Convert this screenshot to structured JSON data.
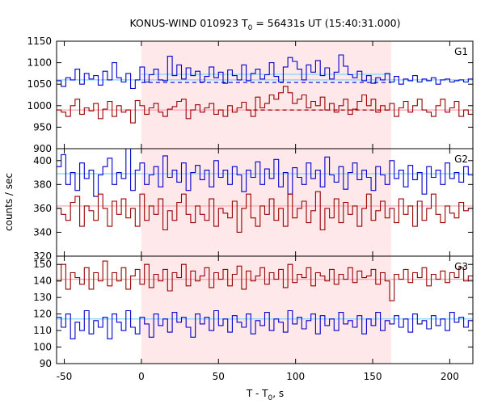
{
  "chart_data": {
    "type": "line",
    "title": "KONUS-WIND 010923 T",
    "title_sub": "0",
    "title_rest": " = 56431s UT (15:40:31.000)",
    "ylabel": "counts / sec",
    "xlabel_main": "T - T",
    "xlabel_sub": "0",
    "xlabel_rest": ", s",
    "xlim": [
      -55,
      215
    ],
    "x_ticks": [
      -50,
      0,
      50,
      100,
      150,
      200
    ],
    "shade": {
      "x_start": 0,
      "x_end": 162,
      "color": "#ffe8ea"
    },
    "bin_start": -55,
    "bin_width": 3,
    "colors": {
      "blue": "#0000cc",
      "red": "#990000",
      "blue_bg": "#7fd4ff",
      "red_bg": "#ff9fb0"
    },
    "panels": [
      {
        "name": "G1",
        "ylim": [
          900,
          1150
        ],
        "y_ticks": [
          900,
          950,
          1000,
          1050,
          1100,
          1150
        ],
        "background": [
          {
            "series": "blue",
            "level": 1060,
            "style": "solid",
            "x_start": -55,
            "x_end": 215
          },
          {
            "series": "red",
            "level": 990,
            "style": "solid",
            "x_start": -55,
            "x_end": 215
          },
          {
            "series": "blue",
            "level": 1073,
            "style": "solid",
            "x_start": 0,
            "x_end": 162
          }
        ],
        "fits": [
          {
            "series": "blue",
            "level": 1054,
            "style": "dashed",
            "x_start": 0,
            "x_end": 162
          },
          {
            "series": "red",
            "level": 990,
            "style": "dashed",
            "x_start": 68,
            "x_end": 162
          }
        ],
        "series": [
          {
            "color": "blue",
            "values": [
              1058,
              1045,
              1065,
              1060,
              1085,
              1050,
              1075,
              1062,
              1070,
              1048,
              1080,
              1060,
              1100,
              1065,
              1055,
              1075,
              1040,
              1060,
              1090,
              1055,
              1072,
              1085,
              1060,
              1058,
              1115,
              1070,
              1095,
              1062,
              1088,
              1070,
              1080,
              1055,
              1068,
              1090,
              1065,
              1078,
              1052,
              1083,
              1070,
              1060,
              1095,
              1058,
              1075,
              1085,
              1062,
              1072,
              1100,
              1068,
              1055,
              1090,
              1112,
              1103,
              1085,
              1060,
              1095,
              1078,
              1105,
              1070,
              1088,
              1062,
              1078,
              1118,
              1092,
              1072,
              1065,
              1080,
              1058,
              1070,
              1052,
              1065,
              1060,
              1075,
              1055,
              1068,
              1050,
              1062,
              1058,
              1070,
              1055,
              1062,
              1058,
              1065,
              1050,
              1060,
              1062,
              1055,
              1058,
              1060,
              1055,
              1062
            ]
          },
          {
            "color": "red",
            "values": [
              990,
              985,
              975,
              1000,
              1015,
              980,
              995,
              988,
              1005,
              970,
              992,
              1010,
              975,
              1000,
              985,
              990,
              960,
              1012,
              1000,
              980,
              995,
              1005,
              985,
              975,
              992,
              998,
              1010,
              1015,
              970,
              990,
              1002,
              985,
              995,
              1005,
              980,
              990,
              975,
              1000,
              985,
              995,
              1008,
              990,
              975,
              1020,
              995,
              1005,
              1025,
              1015,
              1030,
              1045,
              1030,
              1005,
              1015,
              1025,
              995,
              1010,
              1000,
              1020,
              990,
              1005,
              985,
              1000,
              1015,
              980,
              992,
              1010,
              1025,
              1000,
              1015,
              985,
              1000,
              990,
              1005,
              975,
              995,
              1010,
              985,
              1000,
              1015,
              990,
              985,
              975,
              1000,
              1015,
              985,
              995,
              1010,
              975,
              990,
              980
            ]
          }
        ]
      },
      {
        "name": "G2",
        "ylim": [
          320,
          410
        ],
        "y_ticks": [
          320,
          340,
          360,
          380,
          400
        ],
        "background": [
          {
            "series": "blue",
            "level": 389,
            "style": "solid",
            "x_start": -55,
            "x_end": 215
          },
          {
            "series": "red",
            "level": 362,
            "style": "solid",
            "x_start": -55,
            "x_end": 215
          }
        ],
        "fits": [],
        "series": [
          {
            "color": "blue",
            "values": [
              395,
              405,
              380,
              390,
              375,
              398,
              385,
              392,
              370,
              388,
              395,
              402,
              380,
              390,
              385,
              410,
              375,
              392,
              398,
              380,
              388,
              395,
              378,
              404,
              386,
              392,
              382,
              398,
              375,
              390,
              396,
              384,
              392,
              378,
              400,
              386,
              392,
              380,
              395,
              388,
              374,
              392,
              386,
              399,
              380,
              393,
              385,
              401,
              378,
              390,
              372,
              394,
              386,
              380,
              398,
              385,
              392,
              378,
              403,
              388,
              382,
              395,
              376,
              390,
              398,
              384,
              392,
              386,
              375,
              395,
              388,
              380,
              400,
              385,
              392,
              378,
              396,
              384,
              390,
              372,
              395,
              386,
              392,
              380,
              398,
              385,
              390,
              382,
              395,
              388
            ]
          },
          {
            "color": "red",
            "values": [
              360,
              355,
              350,
              365,
              370,
              345,
              362,
              358,
              350,
              372,
              360,
              345,
              366,
              355,
              368,
              352,
              360,
              345,
              372,
              350,
              362,
              355,
              368,
              342,
              358,
              350,
              365,
              372,
              355,
              348,
              362,
              355,
              350,
              368,
              345,
              360,
              356,
              352,
              366,
              340,
              360,
              372,
              352,
              345,
              362,
              355,
              368,
              350,
              360,
              345,
              372,
              352,
              360,
              366,
              348,
              358,
              374,
              342,
              360,
              352,
              368,
              348,
              365,
              355,
              362,
              345,
              360,
              372,
              350,
              358,
              366,
              352,
              360,
              348,
              368,
              355,
              362,
              345,
              366,
              350,
              360,
              372,
              355,
              348,
              362,
              356,
              352,
              365,
              358,
              360
            ]
          }
        ]
      },
      {
        "name": "G3",
        "ylim": [
          90,
          155
        ],
        "y_ticks": [
          90,
          100,
          110,
          120,
          130,
          140,
          150
        ],
        "background": [
          {
            "series": "red",
            "level": 141,
            "style": "solid",
            "x_start": -55,
            "x_end": 215
          },
          {
            "series": "blue",
            "level": 117,
            "style": "solid",
            "x_start": -55,
            "x_end": 215
          }
        ],
        "fits": [],
        "series": [
          {
            "color": "blue",
            "values": [
              118,
              112,
              120,
              105,
              115,
              110,
              122,
              108,
              116,
              112,
              118,
              105,
              120,
              115,
              110,
              122,
              112,
              108,
              118,
              114,
              106,
              120,
              113,
              117,
              109,
              121,
              115,
              118,
              112,
              106,
              120,
              114,
              118,
              110,
              122,
              113,
              117,
              109,
              119,
              115,
              112,
              120,
              108,
              116,
              113,
              121,
              110,
              117,
              115,
              109,
              122,
              114,
              118,
              111,
              116,
              120,
              108,
              119,
              113,
              117,
              110,
              121,
              114,
              116,
              112,
              119,
              108,
              117,
              113,
              121,
              110,
              116,
              114,
              119,
              112,
              117,
              109,
              120,
              114,
              116,
              111,
              119,
              113,
              117,
              110,
              121,
              115,
              118,
              112,
              116
            ]
          },
          {
            "color": "red",
            "values": [
              140,
              150,
              135,
              145,
              142,
              138,
              148,
              135,
              145,
              140,
              152,
              137,
              145,
              140,
              148,
              135,
              143,
              147,
              138,
              150,
              136,
              144,
              140,
              147,
              134,
              145,
              142,
              150,
              137,
              146,
              140,
              143,
              148,
              136,
              145,
              141,
              147,
              137,
              144,
              149,
              135,
              146,
              140,
              143,
              148,
              138,
              145,
              141,
              147,
              136,
              150,
              139,
              144,
              142,
              148,
              137,
              145,
              143,
              140,
              147,
              138,
              144,
              141,
              148,
              139,
              146,
              142,
              143,
              147,
              138,
              145,
              140,
              128,
              144,
              141,
              147,
              139,
              145,
              142,
              148,
              137,
              144,
              141,
              146,
              139,
              145,
              142,
              148,
              140,
              143
            ]
          }
        ]
      }
    ]
  }
}
